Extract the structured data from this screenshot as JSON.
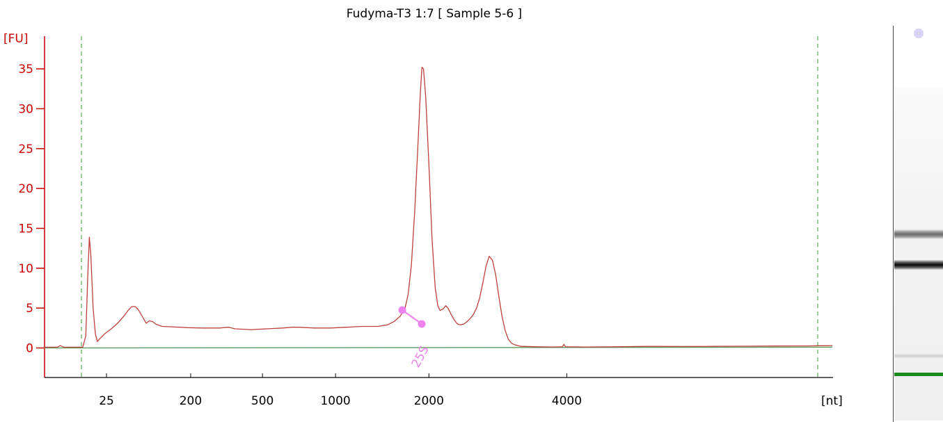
{
  "chart_data": {
    "type": "line",
    "title": "Fudyma-T3 1:7  [ Sample 5-6 ]",
    "xlabel": "[nt]",
    "ylabel": "[FU]",
    "x_ticks": [
      "25",
      "200",
      "500",
      "1000",
      "2000",
      "4000"
    ],
    "y_ticks": [
      "0",
      "5",
      "10",
      "15",
      "20",
      "25",
      "30",
      "35"
    ],
    "ylim": [
      -3.7,
      39
    ],
    "peak_label": "25S",
    "series": [
      {
        "points": [
          [
            0.0,
            0.1
          ],
          [
            4.0,
            0.1
          ],
          [
            5.0,
            0.3
          ],
          [
            6.0,
            0.1
          ],
          [
            12.0,
            0.1
          ],
          [
            13.0,
            1.5
          ],
          [
            13.6,
            9.0
          ],
          [
            14.1,
            13.9
          ],
          [
            14.6,
            11.5
          ],
          [
            15.3,
            5.0
          ],
          [
            16.0,
            1.8
          ],
          [
            16.6,
            0.8
          ],
          [
            17.5,
            1.2
          ],
          [
            19.0,
            1.8
          ],
          [
            21.0,
            2.4
          ],
          [
            23.0,
            3.1
          ],
          [
            25.0,
            4.0
          ],
          [
            26.3,
            4.7
          ],
          [
            27.5,
            5.2
          ],
          [
            28.5,
            5.2
          ],
          [
            29.5,
            4.8
          ],
          [
            31.0,
            3.8
          ],
          [
            32.0,
            3.1
          ],
          [
            33.0,
            3.4
          ],
          [
            34.0,
            3.3
          ],
          [
            35.0,
            3.0
          ],
          [
            37.0,
            2.7
          ],
          [
            40.0,
            2.65
          ],
          [
            45.0,
            2.55
          ],
          [
            50.0,
            2.5
          ],
          [
            55.0,
            2.5
          ],
          [
            58.0,
            2.6
          ],
          [
            60.0,
            2.4
          ],
          [
            65.0,
            2.3
          ],
          [
            70.0,
            2.4
          ],
          [
            75.0,
            2.5
          ],
          [
            78.0,
            2.6
          ],
          [
            80.0,
            2.6
          ],
          [
            85.0,
            2.5
          ],
          [
            90.0,
            2.5
          ],
          [
            95.0,
            2.6
          ],
          [
            100.0,
            2.7
          ],
          [
            105.0,
            2.7
          ],
          [
            108.0,
            2.9
          ],
          [
            110.0,
            3.3
          ],
          [
            112.0,
            4.0
          ],
          [
            113.5,
            5.0
          ],
          [
            114.5,
            6.8
          ],
          [
            115.5,
            10.5
          ],
          [
            116.5,
            17.0
          ],
          [
            117.5,
            25.0
          ],
          [
            118.3,
            32.0
          ],
          [
            118.8,
            35.2
          ],
          [
            119.3,
            35.0
          ],
          [
            120.0,
            31.5
          ],
          [
            121.0,
            23.0
          ],
          [
            122.0,
            13.5
          ],
          [
            123.0,
            7.5
          ],
          [
            123.8,
            5.3
          ],
          [
            124.5,
            4.7
          ],
          [
            125.5,
            4.9
          ],
          [
            126.3,
            5.3
          ],
          [
            127.0,
            5.0
          ],
          [
            128.0,
            4.2
          ],
          [
            129.0,
            3.5
          ],
          [
            130.0,
            3.0
          ],
          [
            131.0,
            2.9
          ],
          [
            132.0,
            3.0
          ],
          [
            133.0,
            3.3
          ],
          [
            134.0,
            3.7
          ],
          [
            135.0,
            4.2
          ],
          [
            136.0,
            5.0
          ],
          [
            137.0,
            6.3
          ],
          [
            138.0,
            8.2
          ],
          [
            139.0,
            10.3
          ],
          [
            140.0,
            11.5
          ],
          [
            141.0,
            11.0
          ],
          [
            142.0,
            9.2
          ],
          [
            143.0,
            6.5
          ],
          [
            144.0,
            4.0
          ],
          [
            145.0,
            2.2
          ],
          [
            146.0,
            1.1
          ],
          [
            147.0,
            0.6
          ],
          [
            148.0,
            0.4
          ],
          [
            150.0,
            0.2
          ],
          [
            155.0,
            0.15
          ],
          [
            160.0,
            0.12
          ],
          [
            163.0,
            0.15
          ],
          [
            163.5,
            0.45
          ],
          [
            164.0,
            0.15
          ],
          [
            170.0,
            0.12
          ],
          [
            180.0,
            0.15
          ],
          [
            190.0,
            0.2
          ],
          [
            200.0,
            0.18
          ],
          [
            210.0,
            0.2
          ],
          [
            220.0,
            0.22
          ],
          [
            230.0,
            0.24
          ],
          [
            240.0,
            0.25
          ],
          [
            244.0,
            0.28
          ],
          [
            248.0,
            0.3
          ]
        ],
        "color": "#c0403a"
      },
      {
        "points": [
          [
            0.0,
            0.0
          ],
          [
            248.0,
            0.1
          ]
        ],
        "color": "#5a9a5a"
      }
    ],
    "marker_color": "#ee82ee",
    "axis_color": "#cc0000"
  }
}
